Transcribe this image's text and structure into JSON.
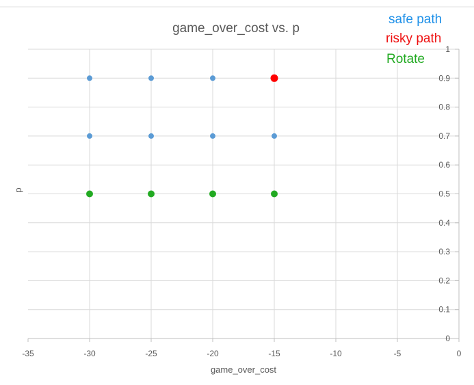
{
  "chart_data": {
    "type": "scatter",
    "title": "game_over_cost vs. p",
    "xlabel": "game_over_cost",
    "ylabel": "p",
    "xlim": [
      -35,
      0
    ],
    "ylim": [
      0,
      1
    ],
    "x_ticks": [
      -35,
      -30,
      -25,
      -20,
      -15,
      -10,
      -5,
      0
    ],
    "y_ticks": [
      0,
      0.1,
      0.2,
      0.3,
      0.4,
      0.5,
      0.6,
      0.7,
      0.8,
      0.9,
      1
    ],
    "y_axis_position": "right",
    "grid": true,
    "legend_position": "top-right",
    "series": [
      {
        "name": "safe path",
        "color": "#5b9bd5",
        "points": [
          {
            "x": -30,
            "y": 0.9
          },
          {
            "x": -25,
            "y": 0.9
          },
          {
            "x": -20,
            "y": 0.9
          },
          {
            "x": -30,
            "y": 0.7
          },
          {
            "x": -25,
            "y": 0.7
          },
          {
            "x": -20,
            "y": 0.7
          },
          {
            "x": -15,
            "y": 0.7
          }
        ]
      },
      {
        "name": "risky path",
        "color": "#ff0000",
        "points": [
          {
            "x": -15,
            "y": 0.9
          }
        ]
      },
      {
        "name": "Rotate",
        "color": "#22aa22",
        "points": [
          {
            "x": -30,
            "y": 0.5
          },
          {
            "x": -25,
            "y": 0.5
          },
          {
            "x": -20,
            "y": 0.5
          },
          {
            "x": -15,
            "y": 0.5
          }
        ]
      }
    ]
  },
  "legend_colors": {
    "safe path": "#1e90e8",
    "risky path": "#ee1111",
    "Rotate": "#22aa22"
  }
}
